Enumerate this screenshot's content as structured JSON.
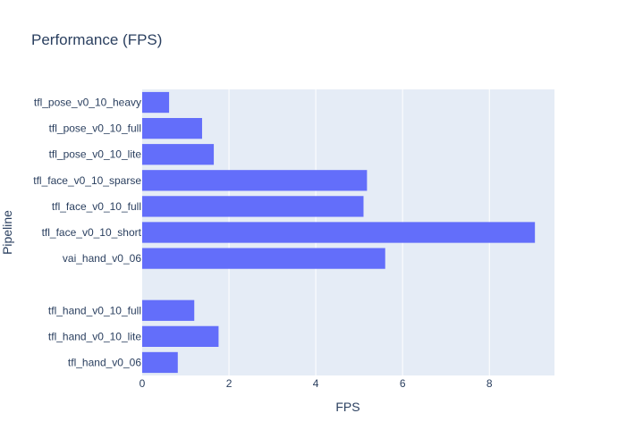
{
  "chart_data": {
    "type": "bar",
    "orientation": "horizontal",
    "title": "Performance (FPS)",
    "xlabel": "FPS",
    "ylabel": "Pipeline",
    "xlim": [
      0,
      9.5
    ],
    "xticks": [
      0,
      2,
      4,
      6,
      8
    ],
    "grid": true,
    "categories": [
      "tfl_hand_v0_06",
      "tfl_hand_v0_10_lite",
      "tfl_hand_v0_10_full",
      "",
      "vai_hand_v0_06",
      "tfl_face_v0_10_short",
      "tfl_face_v0_10_full",
      "tfl_face_v0_10_sparse",
      "tfl_pose_v0_10_lite",
      "tfl_pose_v0_10_full",
      "tfl_pose_v0_10_heavy"
    ],
    "values": [
      0.82,
      1.76,
      1.2,
      null,
      5.6,
      9.05,
      5.1,
      5.18,
      1.65,
      1.38,
      0.62
    ],
    "colors": {
      "bar": "#636efa",
      "plot_bg": "#e5ecf6",
      "grid": "#ffffff",
      "text": "#2a3f5f"
    }
  }
}
